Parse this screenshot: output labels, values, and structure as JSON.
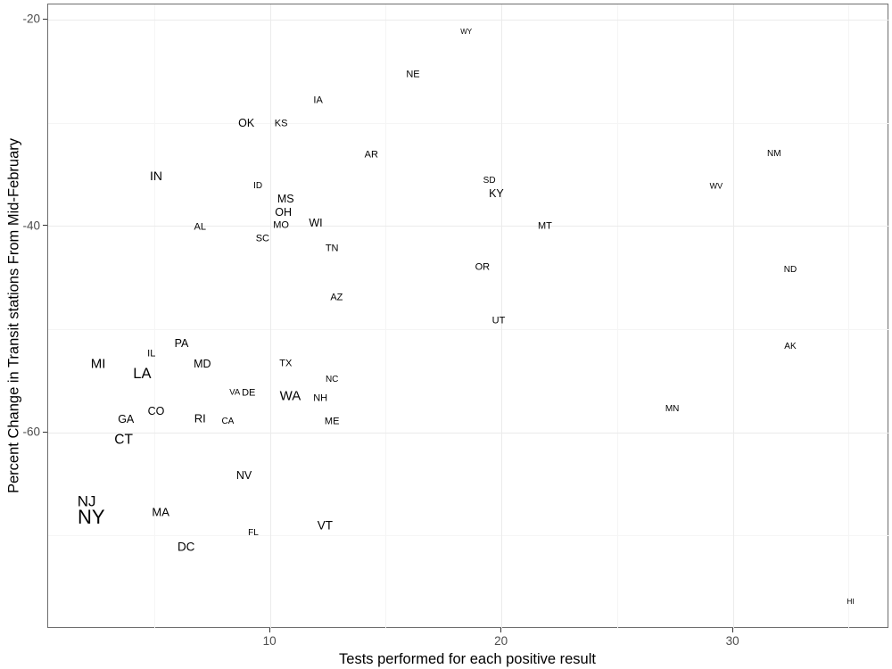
{
  "colors": {
    "background": "#ffffff",
    "label_text": "#000000",
    "tick_label": "#4d4d4d",
    "grid_major": "#ebebeb",
    "grid_minor": "#f5f5f5",
    "panel_border": "#6e6e6e"
  },
  "chart_data": {
    "type": "scatter",
    "title": "",
    "xlabel": "Tests performed for each positive result",
    "ylabel": "Percent Change in Transit stations From Mid-February",
    "xlim": [
      0.4,
      36.74
    ],
    "ylim": [
      -79.0,
      -18.5
    ],
    "x_ticks": [
      "10",
      "20",
      "30"
    ],
    "x_tick_values": [
      10,
      20,
      30
    ],
    "y_ticks": [
      "-20",
      "-40",
      "-60"
    ],
    "y_tick_values": [
      -20,
      -40,
      -60
    ],
    "x_minor_values": [
      5,
      15,
      25,
      35
    ],
    "y_minor_values": [
      -30,
      -50,
      -70
    ],
    "grid": "on",
    "legend": "none",
    "point_style": "state-abbreviation-text-sized",
    "points": [
      {
        "label": "WY",
        "x": 18.5,
        "y": -21.3,
        "size": 8
      },
      {
        "label": "NE",
        "x": 16.2,
        "y": -25.4,
        "size": 11
      },
      {
        "label": "IA",
        "x": 12.1,
        "y": -27.9,
        "size": 11
      },
      {
        "label": "OK",
        "x": 9.0,
        "y": -30.1,
        "size": 12.5
      },
      {
        "label": "KS",
        "x": 10.5,
        "y": -30.2,
        "size": 11
      },
      {
        "label": "AR",
        "x": 14.4,
        "y": -33.2,
        "size": 11
      },
      {
        "label": "IN",
        "x": 5.1,
        "y": -35.2,
        "size": 14
      },
      {
        "label": "ID",
        "x": 9.5,
        "y": -36.2,
        "size": 10
      },
      {
        "label": "MS",
        "x": 10.7,
        "y": -37.4,
        "size": 12.5
      },
      {
        "label": "OH",
        "x": 10.6,
        "y": -38.7,
        "size": 12.5
      },
      {
        "label": "MO",
        "x": 10.5,
        "y": -40.0,
        "size": 11
      },
      {
        "label": "WI",
        "x": 12.0,
        "y": -39.8,
        "size": 12.5
      },
      {
        "label": "AL",
        "x": 7.0,
        "y": -40.2,
        "size": 11
      },
      {
        "label": "SC",
        "x": 9.7,
        "y": -41.3,
        "size": 11
      },
      {
        "label": "TN",
        "x": 12.7,
        "y": -42.3,
        "size": 11
      },
      {
        "label": "AZ",
        "x": 12.9,
        "y": -47.0,
        "size": 11
      },
      {
        "label": "SD",
        "x": 19.5,
        "y": -35.7,
        "size": 10
      },
      {
        "label": "KY",
        "x": 19.8,
        "y": -36.9,
        "size": 12.5
      },
      {
        "label": "MT",
        "x": 21.9,
        "y": -40.1,
        "size": 11
      },
      {
        "label": "OR",
        "x": 19.2,
        "y": -44.1,
        "size": 11
      },
      {
        "label": "UT",
        "x": 19.9,
        "y": -49.3,
        "size": 11
      },
      {
        "label": "WV",
        "x": 29.3,
        "y": -36.2,
        "size": 9
      },
      {
        "label": "NM",
        "x": 31.8,
        "y": -33.1,
        "size": 10
      },
      {
        "label": "ND",
        "x": 32.5,
        "y": -44.3,
        "size": 10
      },
      {
        "label": "AK",
        "x": 32.5,
        "y": -51.8,
        "size": 10
      },
      {
        "label": "MN",
        "x": 27.4,
        "y": -57.8,
        "size": 10
      },
      {
        "label": "HI",
        "x": 35.1,
        "y": -76.4,
        "size": 8.5
      },
      {
        "label": "PA",
        "x": 6.2,
        "y": -51.4,
        "size": 12.5
      },
      {
        "label": "IL",
        "x": 4.9,
        "y": -52.5,
        "size": 11
      },
      {
        "label": "MI",
        "x": 2.6,
        "y": -53.4,
        "size": 15
      },
      {
        "label": "LA",
        "x": 4.5,
        "y": -54.4,
        "size": 16.5
      },
      {
        "label": "MD",
        "x": 7.1,
        "y": -53.4,
        "size": 12.5
      },
      {
        "label": "TX",
        "x": 10.7,
        "y": -53.4,
        "size": 11
      },
      {
        "label": "NC",
        "x": 12.7,
        "y": -55.0,
        "size": 10
      },
      {
        "label": "VA",
        "x": 8.5,
        "y": -56.2,
        "size": 9.5
      },
      {
        "label": "DE",
        "x": 9.1,
        "y": -56.3,
        "size": 11
      },
      {
        "label": "WA",
        "x": 10.9,
        "y": -56.5,
        "size": 15
      },
      {
        "label": "NH",
        "x": 12.2,
        "y": -56.8,
        "size": 11
      },
      {
        "label": "GA",
        "x": 3.8,
        "y": -58.8,
        "size": 12.5
      },
      {
        "label": "CO",
        "x": 5.1,
        "y": -58.0,
        "size": 12.5
      },
      {
        "label": "RI",
        "x": 7.0,
        "y": -58.7,
        "size": 13
      },
      {
        "label": "CA",
        "x": 8.2,
        "y": -59.0,
        "size": 10
      },
      {
        "label": "ME",
        "x": 12.7,
        "y": -59.0,
        "size": 11
      },
      {
        "label": "CT",
        "x": 3.7,
        "y": -60.8,
        "size": 15.5
      },
      {
        "label": "NV",
        "x": 8.9,
        "y": -64.2,
        "size": 12.5
      },
      {
        "label": "NJ",
        "x": 2.1,
        "y": -66.7,
        "size": 17
      },
      {
        "label": "NY",
        "x": 2.3,
        "y": -68.3,
        "size": 22
      },
      {
        "label": "MA",
        "x": 5.3,
        "y": -67.8,
        "size": 13
      },
      {
        "label": "VT",
        "x": 12.4,
        "y": -69.1,
        "size": 13.5
      },
      {
        "label": "FL",
        "x": 9.3,
        "y": -69.8,
        "size": 10
      },
      {
        "label": "DC",
        "x": 6.4,
        "y": -71.1,
        "size": 13.5
      }
    ]
  }
}
